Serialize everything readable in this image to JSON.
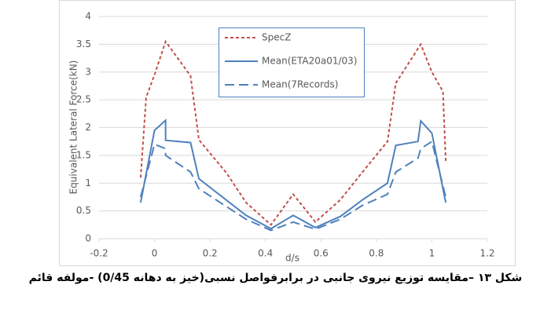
{
  "chart_data": {
    "type": "line",
    "x_label": "d/s",
    "y_label": "Equivalent Lateral Force(kN)",
    "xlim": [
      -0.2,
      1.2
    ],
    "xticks": [
      -0.2,
      0,
      0.2,
      0.4,
      0.6,
      0.8,
      1,
      1.2
    ],
    "ylim": [
      0,
      4
    ],
    "yticks": [
      0,
      0.5,
      1,
      1.5,
      2,
      2.5,
      3,
      3.5,
      4
    ],
    "grid": true,
    "series": [
      {
        "name": "SpecZ",
        "color": "#c0504d",
        "dash": "4,3",
        "x": [
          -0.05,
          -0.03,
          0.0,
          0.04,
          0.13,
          0.16,
          0.26,
          0.33,
          0.42,
          0.5,
          0.58,
          0.67,
          0.75,
          0.84,
          0.87,
          0.96,
          1.0,
          1.04,
          1.05
        ],
        "values": [
          1.1,
          2.55,
          2.95,
          3.55,
          2.93,
          1.78,
          1.18,
          0.65,
          0.25,
          0.8,
          0.3,
          0.7,
          1.2,
          1.75,
          2.8,
          3.5,
          3.0,
          2.65,
          1.4
        ]
      },
      {
        "name": "Mean(ETA20a01/03)",
        "color": "#4f81bd",
        "dash": "",
        "x": [
          -0.05,
          0.0,
          0.04,
          0.04,
          0.13,
          0.16,
          0.33,
          0.42,
          0.5,
          0.58,
          0.67,
          0.75,
          0.84,
          0.87,
          0.95,
          0.96,
          1.0,
          1.05
        ],
        "values": [
          0.65,
          1.95,
          2.13,
          1.77,
          1.73,
          1.08,
          0.42,
          0.18,
          0.42,
          0.2,
          0.4,
          0.7,
          1.0,
          1.68,
          1.75,
          2.12,
          1.9,
          0.65
        ]
      },
      {
        "name": "Mean(7Records)",
        "color": "#4f81bd",
        "dash": "12,6",
        "x": [
          -0.05,
          0.0,
          0.04,
          0.04,
          0.13,
          0.16,
          0.33,
          0.42,
          0.5,
          0.58,
          0.67,
          0.75,
          0.84,
          0.87,
          0.95,
          0.96,
          1.0,
          1.05
        ],
        "values": [
          0.75,
          1.7,
          1.62,
          1.5,
          1.2,
          0.9,
          0.35,
          0.15,
          0.3,
          0.17,
          0.35,
          0.6,
          0.8,
          1.2,
          1.45,
          1.62,
          1.75,
          0.75
        ]
      }
    ]
  },
  "caption": "شکل ۱۳ –مقایسه توزیع نیروی جانبی در برابرفواصل نسبی(خیز به دهانه 0/45) -مولفه قائم"
}
